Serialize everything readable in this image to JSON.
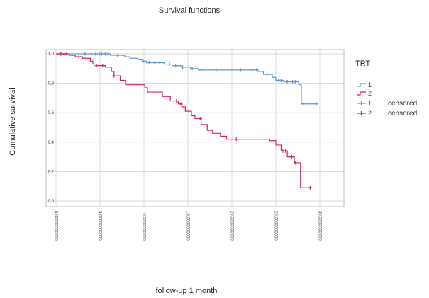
{
  "chart_data": {
    "type": "line",
    "title": "Survival functions",
    "xlabel": "follow-up 1 month",
    "ylabel": "Cumulative survival",
    "xlim": [
      0,
      30
    ],
    "ylim": [
      0,
      1
    ],
    "x_ticks": [
      {
        "value": 0,
        "label": "0.00000000000"
      },
      {
        "value": 5,
        "label": "5.00000000000"
      },
      {
        "value": 10,
        "label": "10.0000000000"
      },
      {
        "value": 15,
        "label": "15.0000000000"
      },
      {
        "value": 20,
        "label": "20.0000000000"
      },
      {
        "value": 25,
        "label": "25.0000000000"
      },
      {
        "value": 30,
        "label": "30.0000000000"
      }
    ],
    "y_ticks": [
      {
        "value": 0.0,
        "label": "0,0"
      },
      {
        "value": 0.2,
        "label": "0,2"
      },
      {
        "value": 0.4,
        "label": "0,4"
      },
      {
        "value": 0.6,
        "label": "0,6"
      },
      {
        "value": 0.8,
        "label": "0,8"
      },
      {
        "value": 1.0,
        "label": "1,0"
      }
    ],
    "grid": true,
    "legend_title": "TRT",
    "legend_placement": "right",
    "legend_entries": [
      {
        "label": "1",
        "note": "",
        "color": "#5b9bd5",
        "marker": "line"
      },
      {
        "label": "2",
        "note": "",
        "color": "#d6264e",
        "marker": "line"
      },
      {
        "label": "1",
        "note": "censored",
        "color": "#5b9bd5",
        "marker": "cross"
      },
      {
        "label": "2",
        "note": "censored",
        "color": "#d6264e",
        "marker": "cross"
      }
    ],
    "series": [
      {
        "name": "1",
        "color": "#5b9bd5",
        "steps": [
          [
            0,
            1.0
          ],
          [
            6.2,
            0.99
          ],
          [
            7.8,
            0.98
          ],
          [
            8.4,
            0.97
          ],
          [
            9.3,
            0.96
          ],
          [
            9.9,
            0.95
          ],
          [
            10.3,
            0.94
          ],
          [
            12.3,
            0.93
          ],
          [
            13.2,
            0.92
          ],
          [
            14.2,
            0.91
          ],
          [
            15.3,
            0.9
          ],
          [
            16.2,
            0.89
          ],
          [
            23.0,
            0.88
          ],
          [
            23.6,
            0.86
          ],
          [
            24.6,
            0.84
          ],
          [
            25.0,
            0.82
          ],
          [
            25.9,
            0.81
          ],
          [
            27.6,
            0.79
          ],
          [
            27.9,
            0.66
          ],
          [
            29.8,
            0.66
          ]
        ],
        "censored_x": [
          0.6,
          1.2,
          3.3,
          4.0,
          4.5,
          4.9,
          5.2,
          5.6,
          5.9,
          7.0,
          9.9,
          10.6,
          11.2,
          11.8,
          12.9,
          13.6,
          14.4,
          15.5,
          16.5,
          18.2,
          21.0,
          22.3,
          22.8,
          24.0,
          25.3,
          25.6,
          26.3,
          26.9,
          27.2,
          28.1,
          29.6
        ]
      },
      {
        "name": "2",
        "color": "#d6264e",
        "steps": [
          [
            0,
            1.0
          ],
          [
            1.5,
            0.99
          ],
          [
            2.2,
            0.98
          ],
          [
            3.0,
            0.97
          ],
          [
            3.9,
            0.95
          ],
          [
            4.2,
            0.93
          ],
          [
            4.6,
            0.92
          ],
          [
            5.6,
            0.91
          ],
          [
            6.3,
            0.88
          ],
          [
            6.6,
            0.85
          ],
          [
            7.3,
            0.82
          ],
          [
            7.9,
            0.79
          ],
          [
            10.1,
            0.77
          ],
          [
            10.4,
            0.74
          ],
          [
            12.1,
            0.71
          ],
          [
            13.0,
            0.68
          ],
          [
            13.9,
            0.66
          ],
          [
            14.3,
            0.64
          ],
          [
            14.7,
            0.61
          ],
          [
            15.4,
            0.58
          ],
          [
            15.8,
            0.56
          ],
          [
            16.5,
            0.52
          ],
          [
            17.2,
            0.48
          ],
          [
            17.8,
            0.46
          ],
          [
            18.7,
            0.44
          ],
          [
            19.4,
            0.42
          ],
          [
            24.3,
            0.41
          ],
          [
            25.0,
            0.38
          ],
          [
            25.6,
            0.34
          ],
          [
            26.3,
            0.3
          ],
          [
            27.1,
            0.26
          ],
          [
            27.8,
            0.09
          ],
          [
            29.1,
            0.09
          ]
        ],
        "censored_x": [
          0.5,
          1.0,
          2.6,
          4.6,
          5.3,
          6.6,
          13.7,
          14.2,
          16.4,
          20.5,
          25.8,
          26.1,
          26.8,
          27.2,
          28.9
        ]
      }
    ]
  }
}
